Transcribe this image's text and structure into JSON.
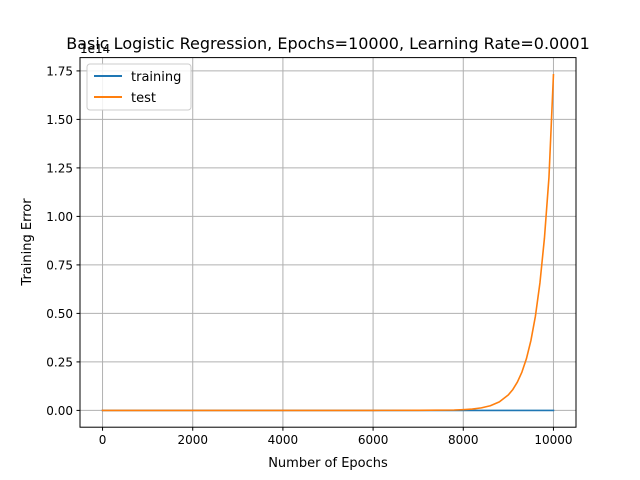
{
  "chart_data": {
    "type": "line",
    "title": "Basic Logistic Regression, Epochs=10000, Learning Rate=0.0001",
    "xlabel": "Number of Epochs",
    "ylabel": "Training Error",
    "y_offset_text": "1e14",
    "xlim": [
      -500,
      10500
    ],
    "ylim": [
      -0.0866,
      1.8186
    ],
    "x_ticks": [
      0,
      2000,
      4000,
      6000,
      8000,
      10000
    ],
    "x_tick_labels": [
      "0",
      "2000",
      "4000",
      "6000",
      "8000",
      "10000"
    ],
    "y_ticks": [
      0.0,
      0.25,
      0.5,
      0.75,
      1.0,
      1.25,
      1.5,
      1.75
    ],
    "y_tick_labels": [
      "0.00",
      "0.25",
      "0.50",
      "0.75",
      "1.00",
      "1.25",
      "1.50",
      "1.75"
    ],
    "grid": true,
    "legend_position": "top-left",
    "series": [
      {
        "name": "training",
        "color": "#1f77b4",
        "x": [
          0,
          1000,
          2000,
          3000,
          4000,
          5000,
          6000,
          7000,
          8000,
          9000,
          10000
        ],
        "y": [
          0,
          0,
          0,
          0,
          0,
          0,
          0,
          0,
          0,
          0,
          0
        ]
      },
      {
        "name": "test",
        "color": "#ff7f0e",
        "x": [
          0,
          1000,
          2000,
          3000,
          4000,
          5000,
          6000,
          7000,
          7800,
          8000,
          8200,
          8400,
          8600,
          8800,
          9000,
          9100,
          9200,
          9300,
          9400,
          9500,
          9600,
          9700,
          9800,
          9900,
          10000
        ],
        "y": [
          0,
          0,
          0,
          0,
          0,
          0,
          0,
          0.0005,
          0.002,
          0.004,
          0.007,
          0.013,
          0.024,
          0.044,
          0.08,
          0.108,
          0.146,
          0.197,
          0.266,
          0.36,
          0.486,
          0.657,
          0.888,
          1.2,
          1.73
        ]
      }
    ]
  }
}
